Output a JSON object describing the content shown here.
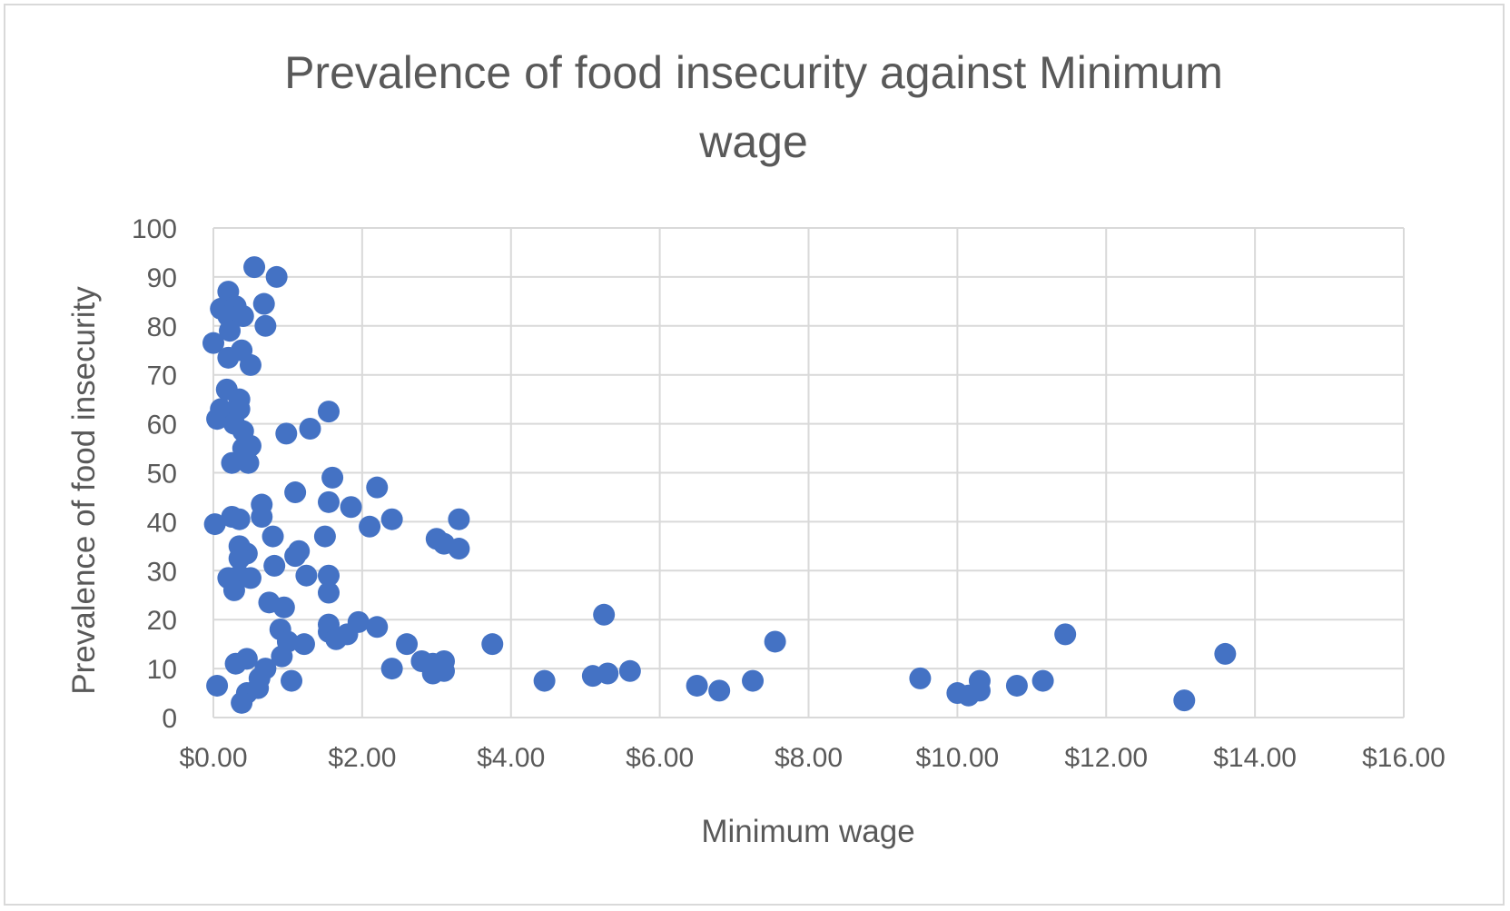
{
  "chart_data": {
    "type": "scatter",
    "title_lines": [
      "Prevalence of food insecurity against Minimum",
      "wage"
    ],
    "xlabel": "Minimum wage",
    "ylabel": "Prevalence of food insecurity",
    "xlim": [
      0,
      16
    ],
    "ylim": [
      0,
      100
    ],
    "x_ticks": [
      0,
      2,
      4,
      6,
      8,
      10,
      12,
      14,
      16
    ],
    "x_tick_labels": [
      "$0.00",
      "$2.00",
      "$4.00",
      "$6.00",
      "$8.00",
      "$10.00",
      "$12.00",
      "$14.00",
      "$16.00"
    ],
    "y_ticks": [
      0,
      10,
      20,
      30,
      40,
      50,
      60,
      70,
      80,
      90,
      100
    ],
    "y_tick_labels": [
      "0",
      "10",
      "20",
      "30",
      "40",
      "50",
      "60",
      "70",
      "80",
      "90",
      "100"
    ],
    "grid": true,
    "legend": "none",
    "marker_color": "#4472c4",
    "points": [
      [
        0.55,
        92
      ],
      [
        0.85,
        90
      ],
      [
        0.2,
        87
      ],
      [
        0.68,
        84.5
      ],
      [
        0.1,
        83.5
      ],
      [
        0.3,
        84
      ],
      [
        0.2,
        82
      ],
      [
        0.4,
        82
      ],
      [
        0.7,
        80
      ],
      [
        0.22,
        79
      ],
      [
        0.0,
        76.5
      ],
      [
        0.38,
        75
      ],
      [
        0.2,
        73.5
      ],
      [
        0.5,
        72
      ],
      [
        0.18,
        67
      ],
      [
        0.35,
        65
      ],
      [
        0.1,
        63
      ],
      [
        0.35,
        63
      ],
      [
        0.05,
        61
      ],
      [
        0.28,
        60
      ],
      [
        0.4,
        58.5
      ],
      [
        0.98,
        58
      ],
      [
        1.3,
        59
      ],
      [
        1.55,
        62.5
      ],
      [
        0.5,
        55.5
      ],
      [
        0.4,
        55
      ],
      [
        0.25,
        52
      ],
      [
        0.47,
        52
      ],
      [
        1.6,
        49
      ],
      [
        2.2,
        47
      ],
      [
        1.1,
        46
      ],
      [
        0.65,
        43.5
      ],
      [
        1.55,
        44
      ],
      [
        1.85,
        43
      ],
      [
        0.25,
        41
      ],
      [
        0.65,
        41
      ],
      [
        0.02,
        39.5
      ],
      [
        0.35,
        40.5
      ],
      [
        2.1,
        39
      ],
      [
        2.4,
        40.5
      ],
      [
        3.3,
        40.5
      ],
      [
        0.8,
        37
      ],
      [
        1.5,
        37
      ],
      [
        3.0,
        36.5
      ],
      [
        3.1,
        35.5
      ],
      [
        3.3,
        34.5
      ],
      [
        0.35,
        35
      ],
      [
        0.45,
        33.5
      ],
      [
        1.15,
        34
      ],
      [
        0.35,
        32.5
      ],
      [
        1.1,
        33
      ],
      [
        0.82,
        31
      ],
      [
        0.2,
        28.5
      ],
      [
        0.35,
        29
      ],
      [
        0.5,
        28.5
      ],
      [
        1.25,
        29
      ],
      [
        1.55,
        29
      ],
      [
        0.28,
        26
      ],
      [
        1.55,
        25.5
      ],
      [
        0.75,
        23.5
      ],
      [
        0.95,
        22.5
      ],
      [
        1.55,
        19
      ],
      [
        1.95,
        19.5
      ],
      [
        2.2,
        18.5
      ],
      [
        0.9,
        18
      ],
      [
        1.55,
        17.5
      ],
      [
        1.65,
        16
      ],
      [
        1.8,
        17
      ],
      [
        1.0,
        15.5
      ],
      [
        1.22,
        15
      ],
      [
        2.6,
        15
      ],
      [
        3.75,
        15
      ],
      [
        5.25,
        21
      ],
      [
        7.55,
        15.5
      ],
      [
        11.45,
        17
      ],
      [
        13.6,
        13
      ],
      [
        0.92,
        12.5
      ],
      [
        0.45,
        12
      ],
      [
        0.3,
        11
      ],
      [
        2.8,
        11.5
      ],
      [
        2.95,
        11
      ],
      [
        3.1,
        11.5
      ],
      [
        2.4,
        10
      ],
      [
        3.0,
        10
      ],
      [
        0.7,
        10
      ],
      [
        2.95,
        9
      ],
      [
        3.1,
        9.5
      ],
      [
        5.1,
        8.5
      ],
      [
        5.3,
        9
      ],
      [
        5.6,
        9.5
      ],
      [
        1.05,
        7.5
      ],
      [
        0.62,
        8
      ],
      [
        0.05,
        6.5
      ],
      [
        4.45,
        7.5
      ],
      [
        6.5,
        6.5
      ],
      [
        6.8,
        5.5
      ],
      [
        7.25,
        7.5
      ],
      [
        9.5,
        8
      ],
      [
        10.3,
        7.5
      ],
      [
        10.8,
        6.5
      ],
      [
        11.15,
        7.5
      ],
      [
        10.0,
        5
      ],
      [
        10.15,
        4.5
      ],
      [
        10.3,
        5.5
      ],
      [
        0.45,
        5
      ],
      [
        0.6,
        6
      ],
      [
        13.05,
        3.5
      ],
      [
        0.38,
        3
      ]
    ]
  }
}
